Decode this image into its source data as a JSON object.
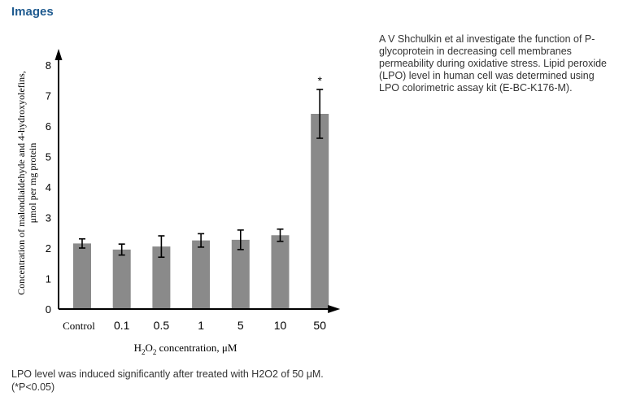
{
  "section": {
    "title": "Images"
  },
  "side_description": "A V Shchulkin et al investigate the function of P-glycoprotein in decreasing cell membranes permeability during oxidative stress. Lipid peroxide (LPO) level in human cell was determined using LPO colorimetric assay kit (E-BC-K176-M).",
  "caption": "LPO level was induced significantly after treated with H2O2 of 50 μM. (*P<0.05)",
  "chart_data": {
    "type": "bar",
    "title": "",
    "categories": [
      "Control",
      "0.1",
      "0.5",
      "1",
      "5",
      "10",
      "50"
    ],
    "values": [
      2.15,
      1.95,
      2.05,
      2.25,
      2.27,
      2.42,
      6.4
    ],
    "errors": [
      0.15,
      0.18,
      0.35,
      0.22,
      0.32,
      0.2,
      0.8
    ],
    "annotations": [
      {
        "category": "50",
        "text": "*"
      }
    ],
    "xlabel": {
      "pre": "H",
      "sub1": "2",
      "mid": "O",
      "sub2": "2",
      "post": " concentration, μM"
    },
    "ylabel_line1": "Concentration of malondialdehyde and 4-hydroxyolefins,",
    "ylabel_line2": "μmol per mg protein",
    "yticks": [
      0,
      1,
      2,
      3,
      4,
      5,
      6,
      7,
      8
    ],
    "ylim": [
      0,
      8
    ],
    "bar_color": "#8a8a8a",
    "axis_color": "#000000",
    "grid": false
  }
}
